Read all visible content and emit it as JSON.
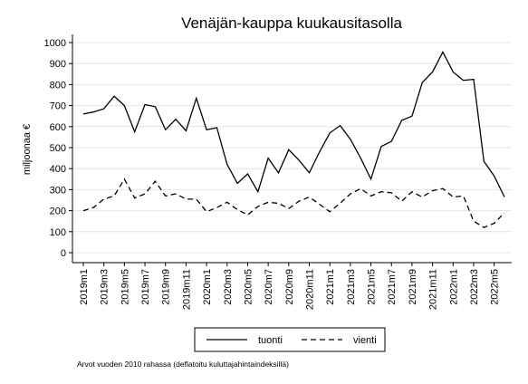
{
  "chart_data": {
    "type": "line",
    "title": "Venäjän-kauppa kuukausitasolla",
    "y_label": "miljoonaa €",
    "note": "Arvot vuoden 2010 rahassa (deflatoitu kuluttajahintaindeksillä)",
    "categories": [
      "2019m1",
      null,
      "2019m3",
      null,
      "2019m5",
      null,
      "2019m7",
      null,
      "2019m9",
      null,
      "2019m11",
      null,
      "2020m1",
      null,
      "2020m3",
      null,
      "2020m5",
      null,
      "2020m7",
      null,
      "2020m9",
      null,
      "2020m11",
      null,
      "2021m1",
      null,
      "2021m3",
      null,
      "2021m5",
      null,
      "2021m7",
      null,
      "2021m9",
      null,
      "2021m11",
      null,
      "2022m1",
      null,
      "2022m3",
      null,
      "2022m5",
      null
    ],
    "series": [
      {
        "name": "tuonti",
        "color": "#000000",
        "dash": "solid",
        "values": [
          660,
          670,
          685,
          745,
          700,
          575,
          705,
          695,
          585,
          635,
          580,
          735,
          585,
          595,
          420,
          330,
          375,
          290,
          450,
          380,
          490,
          440,
          380,
          480,
          570,
          605,
          540,
          450,
          350,
          505,
          530,
          630,
          650,
          810,
          860,
          955,
          860,
          820,
          825,
          435,
          365,
          265
        ]
      },
      {
        "name": "vienti",
        "color": "#000000",
        "dash": "dashed",
        "values": [
          200,
          215,
          255,
          270,
          350,
          260,
          280,
          340,
          270,
          280,
          255,
          255,
          195,
          215,
          240,
          205,
          180,
          220,
          240,
          235,
          210,
          245,
          265,
          230,
          195,
          235,
          280,
          305,
          270,
          290,
          285,
          245,
          290,
          265,
          295,
          305,
          265,
          270,
          150,
          120,
          140,
          190
        ]
      }
    ],
    "ylim": [
      0,
      1000
    ],
    "yticks": [
      0,
      100,
      200,
      300,
      400,
      500,
      600,
      700,
      800,
      900,
      1000
    ],
    "grid": true,
    "legend": "bottom"
  }
}
